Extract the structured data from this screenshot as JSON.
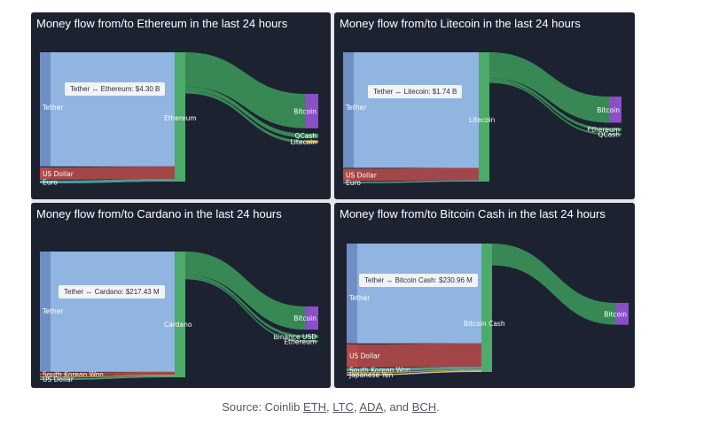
{
  "charts": [
    {
      "title": "Money flow from/to Ethereum in the last 24 hours",
      "tooltip": "Tether ↔ Ethereum: $4.30 B",
      "chart_data": {
        "type": "sankey",
        "center": "Ethereum",
        "sources": [
          {
            "name": "Tether",
            "color": "#9ec5f5",
            "share": 0.83
          },
          {
            "name": "US Dollar",
            "color": "#b24a4a",
            "share": 0.09
          },
          {
            "name": "Euro",
            "color": "#5aa6a6",
            "share": 0.02
          }
        ],
        "targets": [
          {
            "name": "Bitcoin",
            "color": "#8a4fc6",
            "share": 0.25
          },
          {
            "name": "QCash",
            "color": "#3d9a5c",
            "share": 0.03
          },
          {
            "name": "Litecoin",
            "color": "#c2a33a",
            "share": 0.02
          }
        ]
      }
    },
    {
      "title": "Money flow from/to Litecoin in the last 24 hours",
      "tooltip": "Tether ↔ Litecoin: $1.74 B",
      "chart_data": {
        "type": "sankey",
        "center": "Litecoin",
        "sources": [
          {
            "name": "Tether",
            "color": "#9ec5f5",
            "share": 0.84
          },
          {
            "name": "US Dollar",
            "color": "#b24a4a",
            "share": 0.09
          },
          {
            "name": "Euro",
            "color": "#5aa6a6",
            "share": 0.01
          }
        ],
        "targets": [
          {
            "name": "Bitcoin",
            "color": "#8a4fc6",
            "share": 0.19
          },
          {
            "name": "Ethereum",
            "color": "#3d9a5c",
            "share": 0.02
          },
          {
            "name": "QCash",
            "color": "#3d9a5c",
            "share": 0.01
          }
        ]
      }
    },
    {
      "title": "Money flow from/to Cardano in the last 24 hours",
      "tooltip": "Tether ↔ Cardano: $217.43 M",
      "chart_data": {
        "type": "sankey",
        "center": "Cardano",
        "sources": [
          {
            "name": "Tether",
            "color": "#9ec5f5",
            "share": 0.88
          },
          {
            "name": "South Korean Won",
            "color": "#b24a4a",
            "share": 0.02
          },
          {
            "name": "",
            "color": "#c2a33a",
            "share": 0.01
          },
          {
            "name": "US Dollar",
            "color": "#5aa6a6",
            "share": 0.01
          }
        ],
        "targets": [
          {
            "name": "Bitcoin",
            "color": "#8a4fc6",
            "share": 0.17
          },
          {
            "name": "Binance USD",
            "color": "#3d9a5c",
            "share": 0.02
          },
          {
            "name": "Ethereum",
            "color": "#3d9a5c",
            "share": 0.01
          }
        ]
      }
    },
    {
      "title": "Money flow from/to Bitcoin Cash in the last 24 hours",
      "tooltip": "Tether ↔ Bitcoin Cash: $230.96 M",
      "chart_data": {
        "type": "sankey",
        "center": "Bitcoin Cash",
        "sources": [
          {
            "name": "Tether",
            "color": "#9ec5f5",
            "share": 0.73
          },
          {
            "name": "US Dollar",
            "color": "#b24a4a",
            "share": 0.17
          },
          {
            "name": "South Korean Won",
            "color": "#5aa6a6",
            "share": 0.02
          },
          {
            "name": "",
            "color": "#c2a33a",
            "share": 0.01
          },
          {
            "name": "Japanese Yen",
            "color": "#cfcfcf",
            "share": 0.01
          }
        ],
        "targets": [
          {
            "name": "Bitcoin",
            "color": "#8a4fc6",
            "share": 0.16
          }
        ]
      }
    }
  ],
  "source": {
    "prefix": "Source: Coinlib ",
    "links": [
      "ETH",
      "LTC",
      "ADA",
      "BCH"
    ],
    "sep1": ", ",
    "sep2": ", ",
    "sep3": ", and ",
    "suffix": "."
  }
}
